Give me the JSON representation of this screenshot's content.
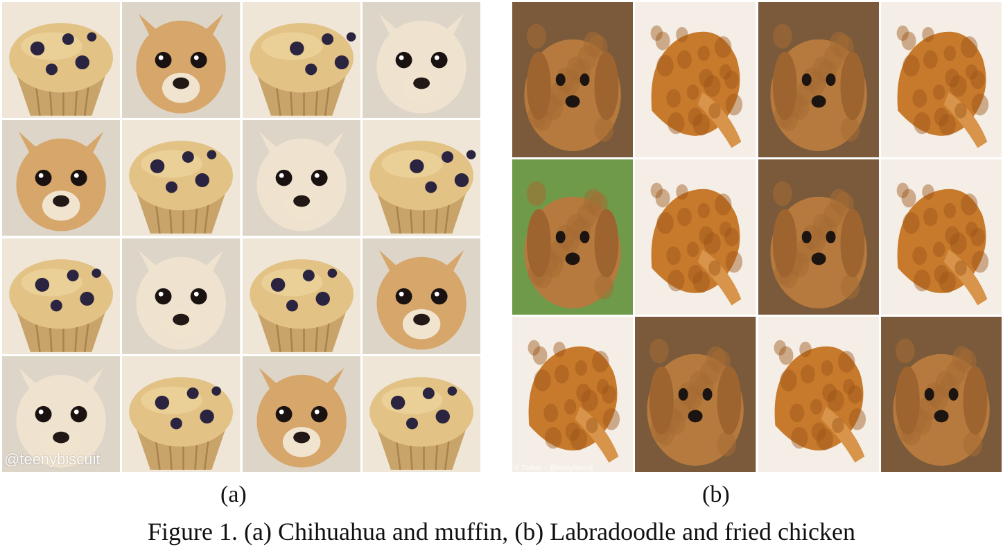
{
  "figure": {
    "caption": "Figure 1. (a) Chihuahua and muffin, (b) Labradoodle and fried chicken",
    "panel_a": {
      "label": "(a)",
      "watermark": "@teenybiscuit",
      "tiles": [
        "muffin",
        "chihuahua",
        "muffin",
        "chihuahua",
        "chihuahua",
        "muffin",
        "chihuahua",
        "muffin",
        "muffin",
        "chihuahua",
        "muffin",
        "chihuahua",
        "chihuahua",
        "muffin",
        "chihuahua",
        "muffin"
      ]
    },
    "panel_b": {
      "label": "(b)",
      "watermark": "© Twitter – @teenybiscuit",
      "tiles": [
        "labradoodle",
        "fried-chicken",
        "labradoodle",
        "fried-chicken",
        "labradoodle",
        "fried-chicken",
        "labradoodle",
        "fried-chicken",
        "fried-chicken",
        "labradoodle",
        "fried-chicken",
        "labradoodle"
      ]
    },
    "colors": {
      "muffin_top": "#e2c285",
      "muffin_liner": "#c9a46a",
      "blueberry": "#2a2440",
      "chihuahua_fur": "#d6a66a",
      "chihuahua_light": "#efe3cf",
      "doodle_fur": "#b67a3e",
      "chicken_crust": "#c77a2c",
      "chicken_dark": "#9c5418",
      "grass": "#6f9a4a",
      "wood": "#7a5a3a"
    }
  }
}
